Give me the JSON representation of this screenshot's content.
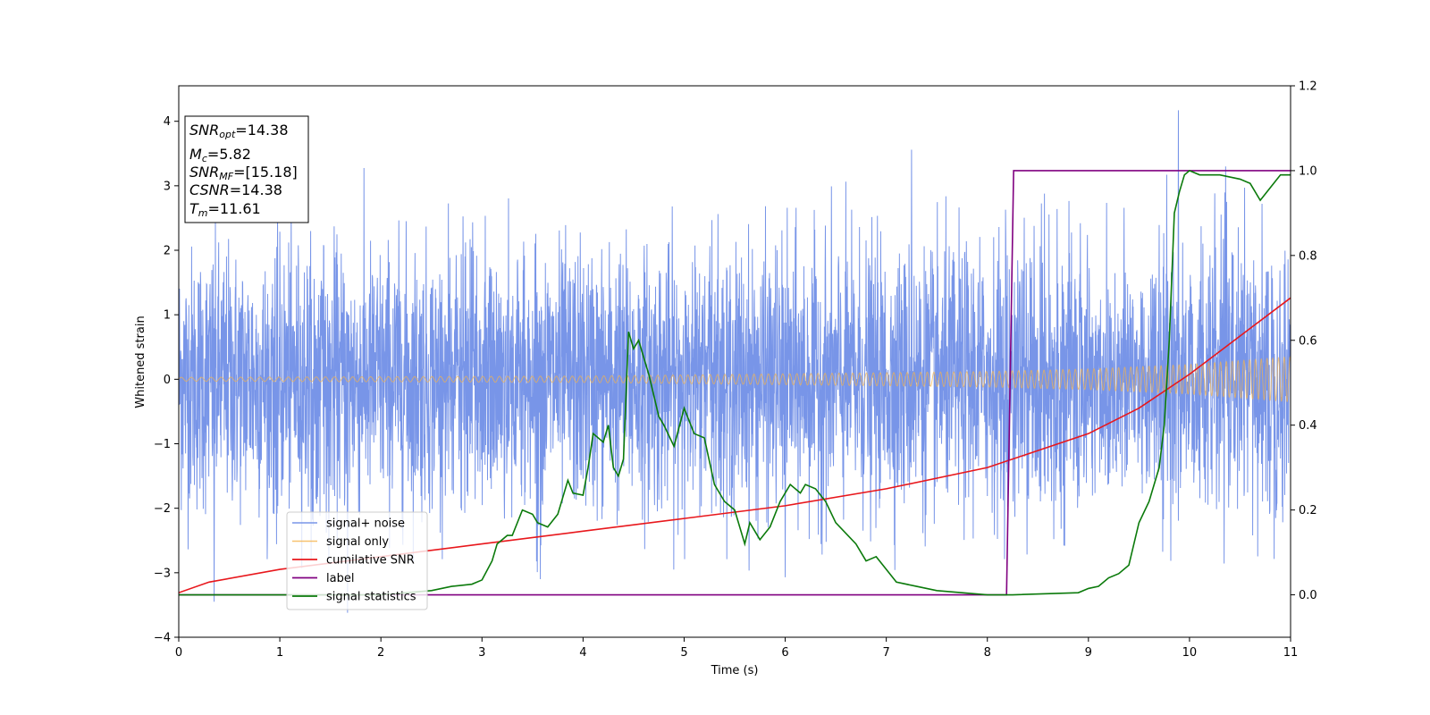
{
  "chart_data": {
    "type": "line",
    "xlabel": "Time (s)",
    "ylabel": "Whitened strain",
    "xlim": [
      0,
      11
    ],
    "ylim": [
      -4,
      4.55
    ],
    "y2lim": [
      -0.1,
      1.2
    ],
    "x_ticks": [
      "0",
      "1",
      "2",
      "3",
      "4",
      "5",
      "6",
      "7",
      "8",
      "9",
      "10",
      "11"
    ],
    "y_ticks": [
      "−4",
      "−3",
      "−2",
      "−1",
      "0",
      "1",
      "2",
      "3",
      "4"
    ],
    "y2_ticks": [
      "0.0",
      "0.2",
      "0.4",
      "0.6",
      "0.8",
      "1.0",
      "1.2"
    ],
    "legend_position": "lower-left",
    "annotation": {
      "snr_opt": {
        "sym": "SNR",
        "sub": "opt",
        "value": "=14.38"
      },
      "mc": {
        "sym": "M",
        "sub": "c",
        "value": "=5.82"
      },
      "snr_mf": {
        "sym": "SNR",
        "sub": "MF",
        "value": "=[15.18]"
      },
      "csnr": {
        "sym": "CSNR",
        "value": "=14.38"
      },
      "tm": {
        "sym": "T",
        "sub": "m",
        "value": "=11.61"
      }
    },
    "series": [
      {
        "name": "signal+ noise",
        "color": "#7895e8",
        "axis": "left",
        "kind": "noise",
        "amplitude_std": 1.0,
        "notable_peaks": [
          [
            9.89,
            4.17
          ],
          [
            7.25,
            3.56
          ],
          [
            0.35,
            -3.45
          ],
          [
            1.67,
            -3.62
          ],
          [
            6.0,
            -3.07
          ]
        ]
      },
      {
        "name": "signal only",
        "color": "#f5b34b",
        "axis": "left",
        "kind": "chirp",
        "envelope": [
          [
            0,
            0.03
          ],
          [
            4,
            0.05
          ],
          [
            8,
            0.12
          ],
          [
            9,
            0.16
          ],
          [
            10,
            0.23
          ],
          [
            11,
            0.35
          ]
        ]
      },
      {
        "name": "cumilative SNR",
        "color": "#e8171c",
        "axis": "right",
        "points": [
          [
            0,
            0.005
          ],
          [
            0.3,
            0.03
          ],
          [
            1,
            0.06
          ],
          [
            2,
            0.09
          ],
          [
            3,
            0.12
          ],
          [
            4,
            0.15
          ],
          [
            5,
            0.18
          ],
          [
            6,
            0.21
          ],
          [
            7,
            0.25
          ],
          [
            8,
            0.3
          ],
          [
            8.5,
            0.34
          ],
          [
            9,
            0.38
          ],
          [
            9.5,
            0.44
          ],
          [
            10,
            0.52
          ],
          [
            10.5,
            0.61
          ],
          [
            11,
            0.7
          ]
        ]
      },
      {
        "name": "label",
        "color": "#800080",
        "axis": "right",
        "points": [
          [
            0,
            0
          ],
          [
            8.19,
            0
          ],
          [
            8.26,
            1
          ],
          [
            11,
            1
          ]
        ]
      },
      {
        "name": "signal statistics",
        "color": "#0b7a0b",
        "axis": "right",
        "points": [
          [
            0,
            0.0
          ],
          [
            2.0,
            0.0
          ],
          [
            2.5,
            0.01
          ],
          [
            2.7,
            0.02
          ],
          [
            2.9,
            0.025
          ],
          [
            3.0,
            0.035
          ],
          [
            3.1,
            0.08
          ],
          [
            3.15,
            0.12
          ],
          [
            3.25,
            0.14
          ],
          [
            3.3,
            0.14
          ],
          [
            3.4,
            0.2
          ],
          [
            3.5,
            0.19
          ],
          [
            3.55,
            0.17
          ],
          [
            3.65,
            0.16
          ],
          [
            3.75,
            0.19
          ],
          [
            3.85,
            0.27
          ],
          [
            3.9,
            0.24
          ],
          [
            4.0,
            0.235
          ],
          [
            4.05,
            0.3
          ],
          [
            4.1,
            0.38
          ],
          [
            4.2,
            0.36
          ],
          [
            4.25,
            0.4
          ],
          [
            4.3,
            0.3
          ],
          [
            4.35,
            0.28
          ],
          [
            4.4,
            0.32
          ],
          [
            4.45,
            0.62
          ],
          [
            4.5,
            0.58
          ],
          [
            4.55,
            0.6
          ],
          [
            4.65,
            0.52
          ],
          [
            4.75,
            0.42
          ],
          [
            4.8,
            0.4
          ],
          [
            4.9,
            0.35
          ],
          [
            5.0,
            0.44
          ],
          [
            5.1,
            0.38
          ],
          [
            5.2,
            0.37
          ],
          [
            5.3,
            0.26
          ],
          [
            5.4,
            0.22
          ],
          [
            5.5,
            0.2
          ],
          [
            5.6,
            0.12
          ],
          [
            5.65,
            0.17
          ],
          [
            5.75,
            0.13
          ],
          [
            5.85,
            0.16
          ],
          [
            5.95,
            0.22
          ],
          [
            6.05,
            0.26
          ],
          [
            6.15,
            0.24
          ],
          [
            6.2,
            0.26
          ],
          [
            6.3,
            0.25
          ],
          [
            6.4,
            0.22
          ],
          [
            6.5,
            0.17
          ],
          [
            6.7,
            0.12
          ],
          [
            6.8,
            0.08
          ],
          [
            6.9,
            0.09
          ],
          [
            7.1,
            0.03
          ],
          [
            7.3,
            0.02
          ],
          [
            7.5,
            0.01
          ],
          [
            8.0,
            0.0
          ],
          [
            8.25,
            0.0
          ],
          [
            8.9,
            0.005
          ],
          [
            9.0,
            0.015
          ],
          [
            9.1,
            0.02
          ],
          [
            9.2,
            0.04
          ],
          [
            9.3,
            0.05
          ],
          [
            9.4,
            0.07
          ],
          [
            9.5,
            0.17
          ],
          [
            9.6,
            0.22
          ],
          [
            9.7,
            0.3
          ],
          [
            9.75,
            0.4
          ],
          [
            9.8,
            0.6
          ],
          [
            9.85,
            0.9
          ],
          [
            9.9,
            0.95
          ],
          [
            9.95,
            0.99
          ],
          [
            10.0,
            1.0
          ],
          [
            10.1,
            0.99
          ],
          [
            10.3,
            0.99
          ],
          [
            10.5,
            0.98
          ],
          [
            10.6,
            0.97
          ],
          [
            10.7,
            0.93
          ],
          [
            10.8,
            0.96
          ],
          [
            10.9,
            0.99
          ],
          [
            11.0,
            0.99
          ]
        ]
      }
    ]
  }
}
